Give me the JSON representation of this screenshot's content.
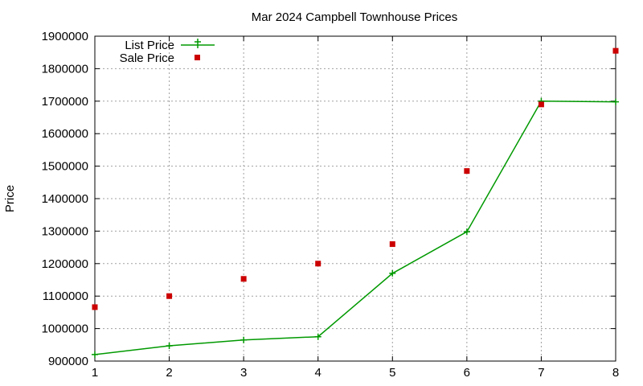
{
  "chart_data": {
    "type": "line",
    "title": "Mar 2024 Campbell Townhouse Prices",
    "xlabel": "",
    "ylabel": "Price",
    "x": [
      1,
      2,
      3,
      4,
      5,
      6,
      7,
      8
    ],
    "xlim": [
      1,
      8
    ],
    "ylim": [
      900000,
      1900000
    ],
    "xticks": [
      "1",
      "2",
      "3",
      "4",
      "5",
      "6",
      "7",
      "8"
    ],
    "yticks": [
      "900000",
      "1000000",
      "1100000",
      "1200000",
      "1300000",
      "1400000",
      "1500000",
      "1600000",
      "1700000",
      "1800000",
      "1900000"
    ],
    "grid": true,
    "legend_position": "top-left",
    "series": [
      {
        "name": "List Price",
        "style": "line-with-plus-markers",
        "color": "#009900",
        "values": [
          920000,
          947000,
          965000,
          975000,
          1170000,
          1298000,
          1700000,
          1698000
        ]
      },
      {
        "name": "Sale Price",
        "style": "square-markers",
        "color": "#cc0000",
        "values": [
          1066000,
          1100000,
          1153000,
          1200000,
          1260000,
          1485000,
          1690000,
          1855000
        ]
      }
    ]
  }
}
